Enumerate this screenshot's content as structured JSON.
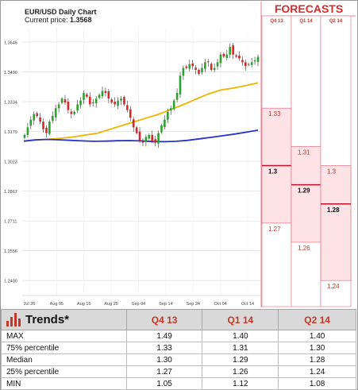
{
  "chart_data": {
    "type": "candlestick",
    "title": "EUR/USD Daily Chart",
    "current_price_label": "Current price: ",
    "current_price": "1.3568",
    "y_ticks": [
      "1.3646",
      "1.3490",
      "1.3334",
      "1.3179",
      "1.3023",
      "1.2867",
      "1.2711",
      "1.2556",
      "1.2400"
    ],
    "ylim": [
      1.2322,
      1.3724
    ],
    "x_ticks": [
      "Jul 26",
      "Aug 05",
      "Aug 15",
      "Aug 25",
      "Sep 04",
      "Sep 14",
      "Sep 24",
      "Oct 04",
      "Oct 14"
    ],
    "closes": [
      1.316,
      1.32,
      1.324,
      1.327,
      1.326,
      1.323,
      1.319,
      1.317,
      1.323,
      1.326,
      1.33,
      1.332,
      1.335,
      1.333,
      1.329,
      1.327,
      1.328,
      1.332,
      1.334,
      1.338,
      1.336,
      1.332,
      1.333,
      1.335,
      1.337,
      1.339,
      1.338,
      1.335,
      1.333,
      1.332,
      1.334,
      1.335,
      1.332,
      1.329,
      1.325,
      1.32,
      1.317,
      1.313,
      1.312,
      1.315,
      1.316,
      1.313,
      1.312,
      1.317,
      1.321,
      1.324,
      1.328,
      1.33,
      1.334,
      1.338,
      1.347,
      1.351,
      1.351,
      1.353,
      1.352,
      1.35,
      1.348,
      1.351,
      1.354,
      1.354,
      1.35,
      1.351,
      1.354,
      1.358,
      1.357,
      1.358,
      1.362,
      1.358,
      1.357,
      1.356,
      1.354,
      1.352,
      1.353,
      1.354,
      1.355,
      1.3568
    ],
    "ma50": [
      1.3128,
      1.3133,
      1.3138,
      1.3143,
      1.315,
      1.316,
      1.317,
      1.319,
      1.321,
      1.323,
      1.325,
      1.327,
      1.3295,
      1.332,
      1.3348,
      1.3375,
      1.3395,
      1.3405,
      1.3418,
      1.3432
    ],
    "ma200": [
      1.3128,
      1.3135,
      1.3137,
      1.3135,
      1.3132,
      1.3129,
      1.3127,
      1.3128,
      1.313,
      1.3131,
      1.3129,
      1.3126,
      1.3125,
      1.3127,
      1.3132,
      1.314,
      1.3148,
      1.3156,
      1.3165,
      1.3175,
      1.3185
    ]
  },
  "forecasts": {
    "title": "FORECASTS",
    "columns": [
      {
        "label": "Q4 13",
        "p75": 1.33,
        "p75_label": "1.33",
        "median": 1.3,
        "median_label": "1.3",
        "p25": 1.27,
        "p25_label": "1.27"
      },
      {
        "label": "Q1 14",
        "p75": 1.31,
        "p75_label": "1.31",
        "median": 1.29,
        "median_label": "1.29",
        "p25": 1.26,
        "p25_label": "1.26"
      },
      {
        "label": "Q2 14",
        "p75": 1.3,
        "p75_label": "1.3",
        "median": 1.28,
        "median_label": "1.28",
        "p25": 1.24,
        "p25_label": "1.24"
      }
    ]
  },
  "trends": {
    "title": "Trends*",
    "headers": [
      "Q4 13",
      "Q1 14",
      "Q2 14"
    ],
    "rows": [
      {
        "label": "MAX",
        "values": [
          "1.49",
          "1.40",
          "1.40"
        ]
      },
      {
        "label": "75% percentile",
        "values": [
          "1.33",
          "1.31",
          "1.30"
        ]
      },
      {
        "label": "Median",
        "values": [
          "1.30",
          "1.29",
          "1.28"
        ]
      },
      {
        "label": "25% percentile",
        "values": [
          "1.27",
          "1.26",
          "1.24"
        ]
      },
      {
        "label": "MIN",
        "values": [
          "1.05",
          "1.12",
          "1.08"
        ]
      }
    ]
  },
  "colors": {
    "bull": "#2ca02c",
    "bear": "#d62728",
    "ma50": "#f0b400",
    "ma200": "#2433c8",
    "forecast_line": "#e87f8f",
    "forecast_fill": "#fde2e6",
    "median_line": "#c0112b",
    "accent": "#c0392b"
  }
}
